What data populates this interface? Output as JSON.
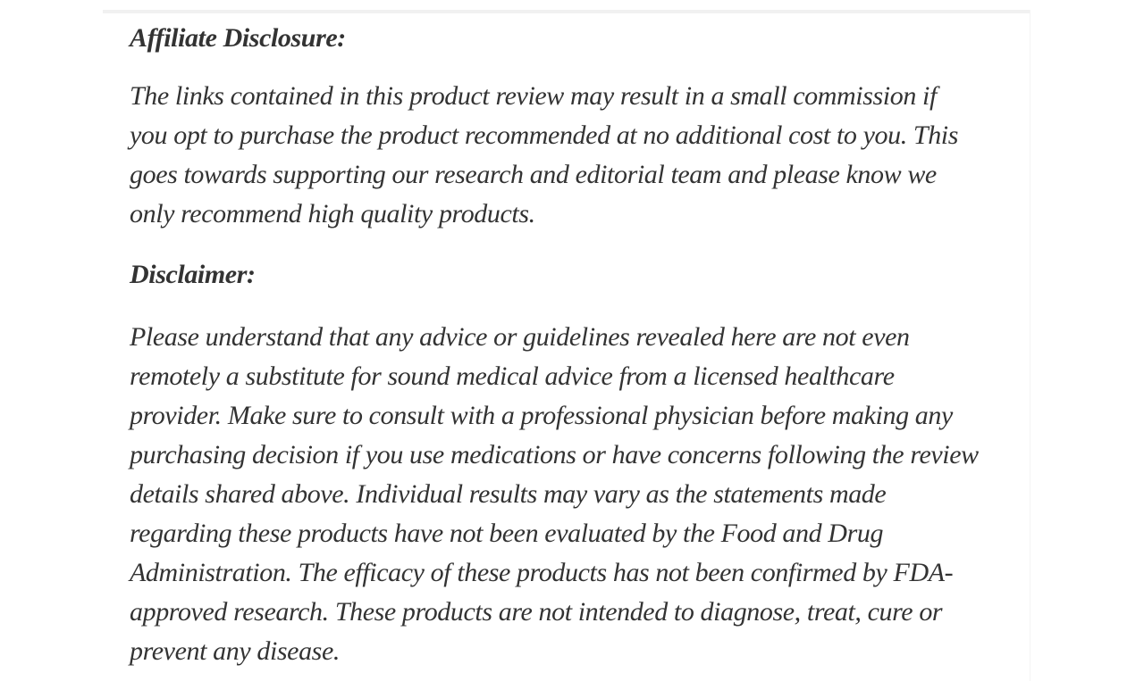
{
  "page": {
    "background_color": "#ffffff",
    "text_color": "#333333",
    "divider_color": "#f1f1f1",
    "right_edge_color": "#f4f4f4"
  },
  "article": {
    "sections": [
      {
        "heading": "Affiliate Disclosure:",
        "lines": [
          "The links contained in this product review may result in a small commission if",
          "you opt to purchase the product recommended at no additional cost to you. This",
          "goes towards supporting our research and editorial team and please know we",
          "only recommend high quality products."
        ],
        "text": "The links contained in this product review may result in a small commission if you opt to purchase the product recommended at no additional cost to you. This goes towards supporting our research and editorial team and please know we only recommend high quality products."
      },
      {
        "heading": "Disclaimer:",
        "lines": [
          "Please understand that any advice or guidelines revealed here are not even",
          "remotely a substitute for sound medical advice from a licensed healthcare",
          "provider. Make sure to consult with a professional physician before making any",
          "purchasing decision if you use medications or have concerns following the review",
          "details shared above. Individual results may vary as the statements made",
          "regarding these products have not been evaluated by the Food and Drug",
          "Administration. The efficacy of these products has not been confirmed by FDA-",
          "approved research. These products are not intended to diagnose, treat, cure or",
          "prevent any disease."
        ],
        "text": "Please understand that any advice or guidelines revealed here are not even remotely a substitute for sound medical advice from a licensed healthcare provider. Make sure to consult with a professional physician before making any purchasing decision if you use medications or have concerns following the review details shared above. Individual results may vary as the statements made regarding these products have not been evaluated by the Food and Drug Administration. The efficacy of these products has not been confirmed by FDA-approved research. These products are not intended to diagnose, treat, cure or prevent any disease."
      }
    ]
  }
}
